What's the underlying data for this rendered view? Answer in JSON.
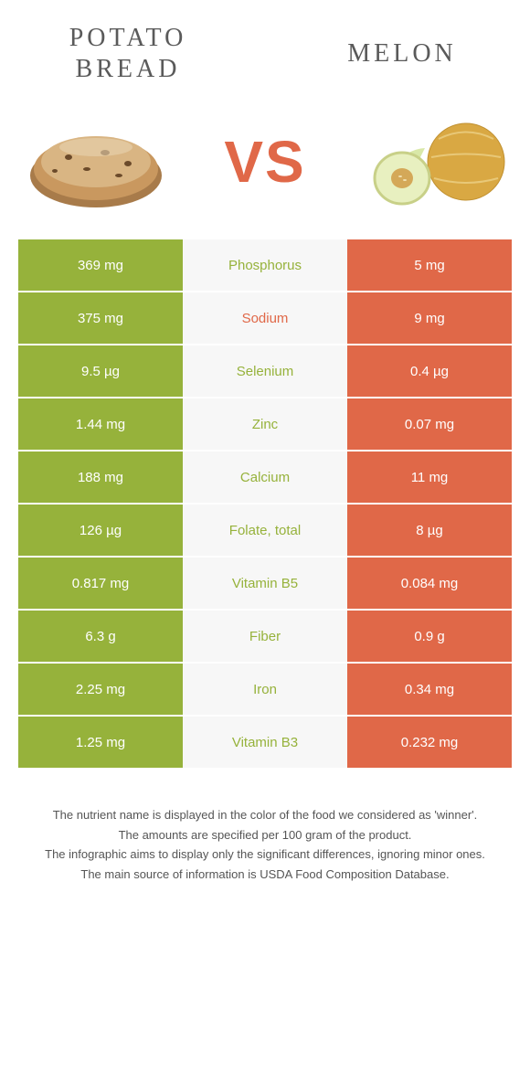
{
  "header": {
    "leftTitle": "POTATO BREAD",
    "rightTitle": "MELON",
    "vs": "VS"
  },
  "colors": {
    "left": "#96b23b",
    "right": "#e06848",
    "midBg": "#f7f7f7",
    "leftWinnerText": "#96b23b",
    "rightWinnerText": "#e06848"
  },
  "rows": [
    {
      "nutrient": "Phosphorus",
      "left": "369 mg",
      "right": "5 mg",
      "winner": "left"
    },
    {
      "nutrient": "Sodium",
      "left": "375 mg",
      "right": "9 mg",
      "winner": "right"
    },
    {
      "nutrient": "Selenium",
      "left": "9.5 µg",
      "right": "0.4 µg",
      "winner": "left"
    },
    {
      "nutrient": "Zinc",
      "left": "1.44 mg",
      "right": "0.07 mg",
      "winner": "left"
    },
    {
      "nutrient": "Calcium",
      "left": "188 mg",
      "right": "11 mg",
      "winner": "left"
    },
    {
      "nutrient": "Folate, total",
      "left": "126 µg",
      "right": "8 µg",
      "winner": "left"
    },
    {
      "nutrient": "Vitamin B5",
      "left": "0.817 mg",
      "right": "0.084 mg",
      "winner": "left"
    },
    {
      "nutrient": "Fiber",
      "left": "6.3 g",
      "right": "0.9 g",
      "winner": "left"
    },
    {
      "nutrient": "Iron",
      "left": "2.25 mg",
      "right": "0.34 mg",
      "winner": "left"
    },
    {
      "nutrient": "Vitamin B3",
      "left": "1.25 mg",
      "right": "0.232 mg",
      "winner": "left"
    }
  ],
  "footer": {
    "line1": "The nutrient name is displayed in the color of the food we considered as 'winner'.",
    "line2": "The amounts are specified per 100 gram of the product.",
    "line3": "The infographic aims to display only the significant differences, ignoring minor ones.",
    "line4": "The main source of information is USDA Food Composition Database."
  }
}
